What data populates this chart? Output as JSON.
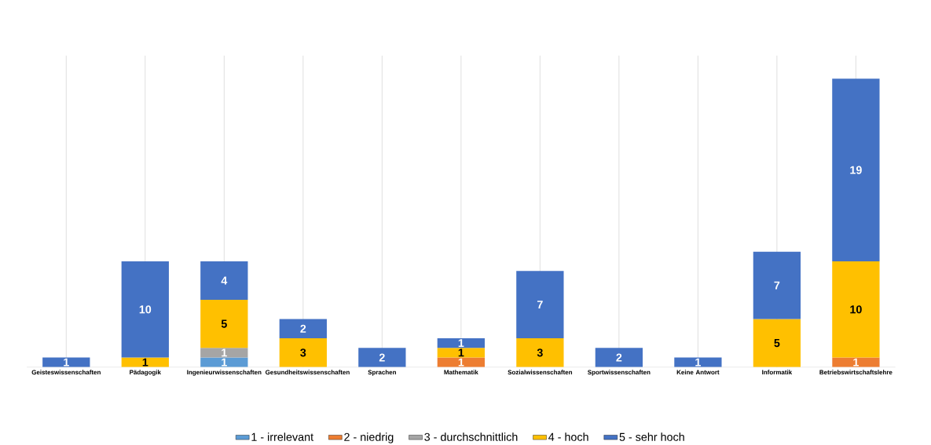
{
  "chart_data": {
    "type": "bar",
    "stacked": true,
    "data_labels": true,
    "grid": "x",
    "legend": "bottom",
    "categories": [
      "Geisteswissenschaften",
      "Pädagogik",
      "Ingenieurwissenschaften",
      "Gesundheitswissenschaften",
      "Sprachen",
      "Mathematik",
      "Sozialwissenschaften",
      "Sportwissenschaften",
      "Keine Antwort",
      "Informatik",
      "Betriebswirtschaftslehre"
    ],
    "series": [
      {
        "name": "1 - irrelevant",
        "color": "#5b9bd5",
        "values": [
          null,
          null,
          1,
          null,
          null,
          null,
          null,
          null,
          null,
          null,
          null
        ]
      },
      {
        "name": "2 - niedrig",
        "color": "#ed7d31",
        "values": [
          null,
          null,
          null,
          null,
          null,
          1,
          null,
          null,
          null,
          null,
          1
        ]
      },
      {
        "name": "3 - durchschnittlich",
        "color": "#a5a5a5",
        "values": [
          null,
          null,
          1,
          null,
          null,
          null,
          null,
          null,
          null,
          null,
          null
        ]
      },
      {
        "name": "4 - hoch",
        "color": "#ffc000",
        "values": [
          null,
          1,
          5,
          3,
          null,
          1,
          3,
          null,
          null,
          5,
          10
        ]
      },
      {
        "name": "5 - sehr hoch",
        "color": "#4472c4",
        "values": [
          1,
          10,
          4,
          2,
          2,
          1,
          7,
          2,
          1,
          7,
          19
        ]
      }
    ]
  }
}
